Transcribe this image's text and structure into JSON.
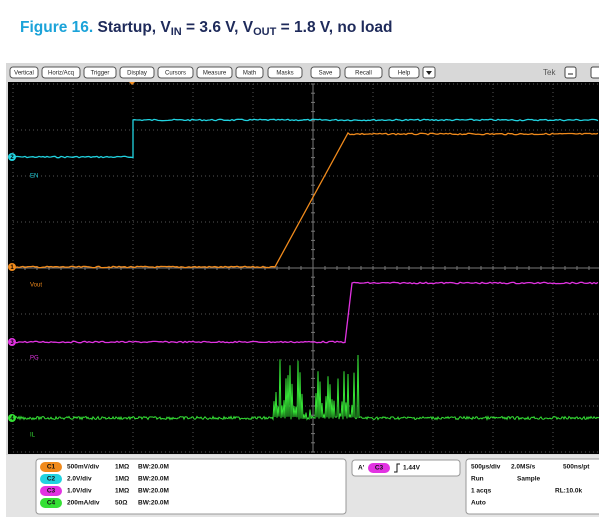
{
  "caption": {
    "figure": "Figure 16.",
    "parts": [
      "Startup, V",
      "IN",
      " = 3.6 V, V",
      "OUT",
      " = 1.8 V, no load"
    ]
  },
  "menu": [
    "Vertical",
    "Horiz/Acq",
    "Trigger",
    "Display",
    "Cursors",
    "Measure",
    "Math",
    "Masks",
    "Save",
    "Recall",
    "Help"
  ],
  "brand": "Tek",
  "markers": [
    "2",
    "1",
    "3",
    "4"
  ],
  "trace_labels": [
    "EN",
    "Vout",
    "PG",
    "IL"
  ],
  "channels": [
    {
      "badge": "C1",
      "scale": "500mV/div",
      "impedance": "1MΩ",
      "bandwidth": "BW:20.0M"
    },
    {
      "badge": "C2",
      "scale": "2.0V/div",
      "impedance": "1MΩ",
      "bandwidth": "BW:20.0M"
    },
    {
      "badge": "C3",
      "scale": "1.0V/div",
      "impedance": "1MΩ",
      "bandwidth": "BW:20.0M"
    },
    {
      "badge": "C4",
      "scale": "200mA/div",
      "impedance": "50Ω",
      "bandwidth": "BW:20.0M"
    }
  ],
  "trigger": {
    "source": "A'",
    "badge": "C3",
    "level": "1.44V"
  },
  "timebase": {
    "scale": "500µs/div",
    "rate": "2.0MS/s",
    "resolution": "500ns/pt",
    "mode": "Run",
    "acquisition": "Sample",
    "acqs": "1 acqs",
    "record": "RL:10.0k",
    "trigger_mode": "Auto"
  }
}
